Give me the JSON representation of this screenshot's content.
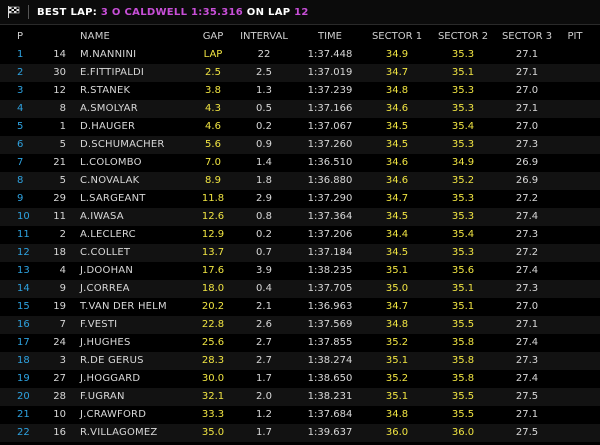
{
  "header": {
    "label": "BEST LAP: ",
    "driver": "3 O CALDWELL 1:35.316",
    "on_lap": " ON LAP ",
    "lap": "12"
  },
  "table": {
    "columns": [
      "P",
      "NAME",
      "GAP",
      "INTERVAL",
      "TIME",
      "SECTOR 1",
      "SECTOR 2",
      "SECTOR 3",
      "PIT"
    ],
    "rows": [
      [
        "1",
        "14",
        "M.NANNINI",
        "LAP",
        "22",
        "1:37.448",
        "34.9",
        "35.3",
        "27.1"
      ],
      [
        "2",
        "30",
        "E.FITTIPALDI",
        "2.5",
        "2.5",
        "1:37.019",
        "34.7",
        "35.1",
        "27.1"
      ],
      [
        "3",
        "12",
        "R.STANEK",
        "3.8",
        "1.3",
        "1:37.239",
        "34.8",
        "35.3",
        "27.0"
      ],
      [
        "4",
        "8",
        "A.SMOLYAR",
        "4.3",
        "0.5",
        "1:37.166",
        "34.6",
        "35.3",
        "27.1"
      ],
      [
        "5",
        "1",
        "D.HAUGER",
        "4.6",
        "0.2",
        "1:37.067",
        "34.5",
        "35.4",
        "27.0"
      ],
      [
        "6",
        "5",
        "D.SCHUMACHER",
        "5.6",
        "0.9",
        "1:37.260",
        "34.5",
        "35.3",
        "27.3"
      ],
      [
        "7",
        "21",
        "L.COLOMBO",
        "7.0",
        "1.4",
        "1:36.510",
        "34.6",
        "34.9",
        "26.9"
      ],
      [
        "8",
        "5",
        "C.NOVALAK",
        "8.9",
        "1.8",
        "1:36.880",
        "34.6",
        "35.2",
        "26.9"
      ],
      [
        "9",
        "29",
        "L.SARGEANT",
        "11.8",
        "2.9",
        "1:37.290",
        "34.7",
        "35.3",
        "27.2"
      ],
      [
        "10",
        "11",
        "A.IWASA",
        "12.6",
        "0.8",
        "1:37.364",
        "34.5",
        "35.3",
        "27.4"
      ],
      [
        "11",
        "2",
        "A.LECLERC",
        "12.9",
        "0.2",
        "1:37.206",
        "34.4",
        "35.4",
        "27.3"
      ],
      [
        "12",
        "18",
        "C.COLLET",
        "13.7",
        "0.7",
        "1:37.184",
        "34.5",
        "35.3",
        "27.2"
      ],
      [
        "13",
        "4",
        "J.DOOHAN",
        "17.6",
        "3.9",
        "1:38.235",
        "35.1",
        "35.6",
        "27.4"
      ],
      [
        "14",
        "9",
        "J.CORREA",
        "18.0",
        "0.4",
        "1:37.705",
        "35.0",
        "35.1",
        "27.3"
      ],
      [
        "15",
        "19",
        "T.VAN DER HELM",
        "20.2",
        "2.1",
        "1:36.963",
        "34.7",
        "35.1",
        "27.0"
      ],
      [
        "16",
        "7",
        "F.VESTI",
        "22.8",
        "2.6",
        "1:37.569",
        "34.8",
        "35.5",
        "27.1"
      ],
      [
        "17",
        "24",
        "J.HUGHES",
        "25.6",
        "2.7",
        "1:37.855",
        "35.2",
        "35.8",
        "27.4"
      ],
      [
        "18",
        "3",
        "R.DE GERUS",
        "28.3",
        "2.7",
        "1:38.274",
        "35.1",
        "35.8",
        "27.3"
      ],
      [
        "19",
        "27",
        "J.HOGGARD",
        "30.0",
        "1.7",
        "1:38.650",
        "35.2",
        "35.8",
        "27.4"
      ],
      [
        "20",
        "28",
        "F.UGRAN",
        "32.1",
        "2.0",
        "1:38.231",
        "35.1",
        "35.5",
        "27.5"
      ],
      [
        "21",
        "10",
        "J.CRAWFORD",
        "33.3",
        "1.2",
        "1:37.684",
        "34.8",
        "35.5",
        "27.1"
      ],
      [
        "22",
        "16",
        "R.VILLAGOMEZ",
        "35.0",
        "1.7",
        "1:39.637",
        "36.0",
        "36.0",
        "27.5"
      ]
    ]
  }
}
